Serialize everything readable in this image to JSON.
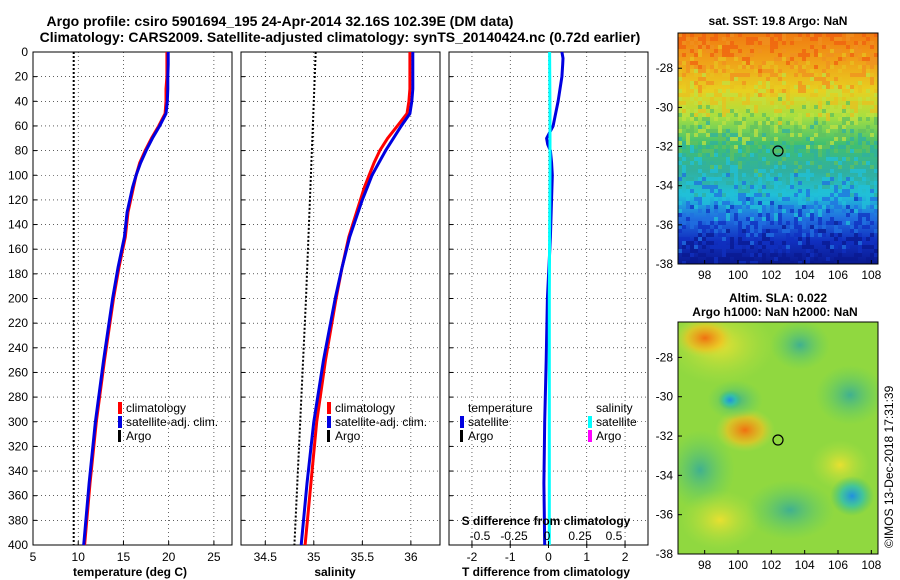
{
  "titles": {
    "line1": "Argo profile: csiro 5901694_195 24-Apr-2014 32.16S 102.39E (DM data)",
    "line2": "Climatology: CARS2009. Satellite-adjusted climatology: synTS_20140424.nc (0.72d earlier)"
  },
  "colors": {
    "climatology": "#ff0000",
    "satellite": "#0000e0",
    "argo": "#000000",
    "salinity_satellite": "#00ffff",
    "salinity_argo": "#ff00ff"
  },
  "chart_data": [
    {
      "name": "temperature",
      "type": "line",
      "xlabel": "temperature (deg C)",
      "ylabel": "",
      "xlim": [
        5,
        27
      ],
      "ylim": [
        400,
        0
      ],
      "xticks": [
        "5",
        "10",
        "15",
        "20",
        "25"
      ],
      "xtick_values": [
        5,
        10,
        15,
        20,
        25
      ],
      "yticks": [
        "0",
        "20",
        "40",
        "60",
        "80",
        "100",
        "120",
        "140",
        "160",
        "180",
        "200",
        "220",
        "240",
        "260",
        "280",
        "300",
        "320",
        "340",
        "360",
        "380",
        "400"
      ],
      "ytick_values": [
        0,
        20,
        40,
        60,
        80,
        100,
        120,
        140,
        160,
        180,
        200,
        220,
        240,
        260,
        280,
        300,
        320,
        340,
        360,
        380,
        400
      ],
      "series": [
        {
          "name": "climatology",
          "color": "#ff0000",
          "depth": [
            0,
            10,
            20,
            30,
            40,
            50,
            60,
            70,
            80,
            90,
            100,
            110,
            120,
            130,
            150,
            175,
            200,
            250,
            300,
            350,
            400
          ],
          "values": [
            19.8,
            19.8,
            19.8,
            19.7,
            19.7,
            19.6,
            18.9,
            18.1,
            17.4,
            16.8,
            16.4,
            16.1,
            15.8,
            15.5,
            15.2,
            14.5,
            13.9,
            12.9,
            12.0,
            11.3,
            10.7
          ]
        },
        {
          "name": "satellite-adj. clim.",
          "color": "#0000e0",
          "depth": [
            0,
            10,
            20,
            30,
            40,
            50,
            60,
            70,
            80,
            90,
            100,
            110,
            120,
            130,
            150,
            175,
            200,
            250,
            300,
            350,
            400
          ],
          "values": [
            19.95,
            19.95,
            19.9,
            19.9,
            19.85,
            19.7,
            19.0,
            18.2,
            17.5,
            16.9,
            16.4,
            16.0,
            15.7,
            15.4,
            15.1,
            14.4,
            13.8,
            12.8,
            11.9,
            11.2,
            10.6
          ]
        },
        {
          "name": "Argo",
          "color": "#000000",
          "style": "dotted",
          "depth": [
            0,
            50,
            100,
            150,
            200,
            250,
            300,
            350,
            400
          ],
          "values": [
            9.5,
            9.5,
            9.5,
            9.5,
            9.5,
            9.5,
            9.5,
            9.5,
            9.5
          ]
        }
      ],
      "legend": [
        "climatology",
        "satellite-adj. clim.",
        "Argo"
      ]
    },
    {
      "name": "salinity",
      "type": "line",
      "xlabel": "salinity",
      "xlim": [
        34.25,
        36.3
      ],
      "ylim": [
        400,
        0
      ],
      "xticks": [
        "34.5",
        "35",
        "35.5",
        "36"
      ],
      "xtick_values": [
        34.5,
        35,
        35.5,
        36
      ],
      "series": [
        {
          "name": "climatology",
          "color": "#ff0000",
          "depth": [
            0,
            10,
            20,
            30,
            40,
            50,
            60,
            70,
            80,
            90,
            100,
            110,
            120,
            150,
            175,
            200,
            250,
            300,
            350,
            400
          ],
          "values": [
            35.99,
            35.99,
            35.99,
            35.99,
            35.98,
            35.96,
            35.86,
            35.76,
            35.68,
            35.62,
            35.57,
            35.52,
            35.48,
            35.36,
            35.29,
            35.23,
            35.12,
            35.03,
            34.97,
            34.91
          ]
        },
        {
          "name": "satellite-adj. clim.",
          "color": "#0000e0",
          "depth": [
            0,
            10,
            20,
            30,
            40,
            50,
            60,
            70,
            80,
            90,
            100,
            110,
            120,
            150,
            175,
            200,
            250,
            300,
            350,
            400
          ],
          "values": [
            36.02,
            36.02,
            36.02,
            36.02,
            36.01,
            35.99,
            35.9,
            35.82,
            35.74,
            35.67,
            35.6,
            35.55,
            35.5,
            35.37,
            35.29,
            35.22,
            35.1,
            35.0,
            34.93,
            34.87
          ]
        },
        {
          "name": "Argo",
          "color": "#000000",
          "style": "dotted",
          "depth": [
            0,
            100,
            200,
            300,
            400
          ],
          "values": [
            35.02,
            34.97,
            34.92,
            34.86,
            34.8
          ]
        }
      ],
      "legend": [
        "climatology",
        "satellite-adj. clim.",
        "Argo"
      ]
    },
    {
      "name": "difference",
      "type": "line",
      "xlabel": "T difference from climatology",
      "xlim": [
        -2.6,
        2.6
      ],
      "ylim": [
        400,
        0
      ],
      "xticks": [
        "-2",
        "-1",
        "0",
        "1",
        "2"
      ],
      "xtick_values": [
        -2,
        -1,
        0,
        1,
        2
      ],
      "top_axis_label": "S difference from climatology",
      "top_xticks": [
        "-0.5",
        "-0.25",
        "0",
        "0.25",
        "0.5"
      ],
      "top_xtick_values": [
        -0.5,
        -0.25,
        0,
        0.25,
        0.5
      ],
      "series": [
        {
          "name": "temperature satellite",
          "color": "#0000e0",
          "depth": [
            0,
            5,
            10,
            20,
            40,
            60,
            70,
            75,
            80,
            90,
            100,
            150,
            200,
            250,
            300,
            350,
            400
          ],
          "values": [
            0.35,
            0.38,
            0.37,
            0.35,
            0.25,
            0.12,
            -0.05,
            -0.02,
            0.05,
            0.08,
            0.1,
            0.05,
            -0.03,
            -0.06,
            -0.1,
            -0.12,
            -0.1
          ]
        },
        {
          "name": "salinity satellite",
          "color": "#00ffff",
          "depth": [
            0,
            50,
            100,
            150,
            200,
            250,
            300,
            350,
            400
          ],
          "values": [
            0.03,
            0.04,
            0.04,
            0.03,
            0.02,
            0.02,
            0.02,
            0.02,
            0.02
          ]
        }
      ],
      "legend_headers": [
        "temperature",
        "salinity"
      ],
      "legend_left": [
        "satellite",
        "Argo"
      ],
      "legend_right": [
        "satellite",
        "Argo"
      ]
    },
    {
      "name": "sst_map",
      "type": "heatmap",
      "title": "sat. SST: 19.8 Argo: NaN",
      "xlim": [
        96.4,
        108.4
      ],
      "ylim": [
        -38,
        -26.2
      ],
      "xticks": [
        "98",
        "100",
        "102",
        "104",
        "106",
        "108"
      ],
      "xtick_values": [
        98,
        100,
        102,
        104,
        106,
        108
      ],
      "yticks": [
        "-28",
        "-30",
        "-32",
        "-34",
        "-36",
        "-38"
      ],
      "ytick_values": [
        -28,
        -30,
        -32,
        -34,
        -36,
        -38
      ],
      "marker": {
        "lon": 102.39,
        "lat": -32.16
      }
    },
    {
      "name": "sla_map",
      "type": "heatmap",
      "title_line1": "Altim. SLA: 0.022",
      "title_line2": "Argo h1000: NaN h2000: NaN",
      "xlim": [
        96.4,
        108.4
      ],
      "ylim": [
        -38,
        -26.2
      ],
      "xticks": [
        "98",
        "100",
        "102",
        "104",
        "106",
        "108"
      ],
      "xtick_values": [
        98,
        100,
        102,
        104,
        106,
        108
      ],
      "yticks": [
        "-28",
        "-30",
        "-32",
        "-34",
        "-36",
        "-38"
      ],
      "ytick_values": [
        -28,
        -30,
        -32,
        -34,
        -36,
        -38
      ],
      "marker": {
        "lon": 102.39,
        "lat": -32.16
      }
    }
  ],
  "watermark": "©IMOS 13-Dec-2018 17:31:39"
}
